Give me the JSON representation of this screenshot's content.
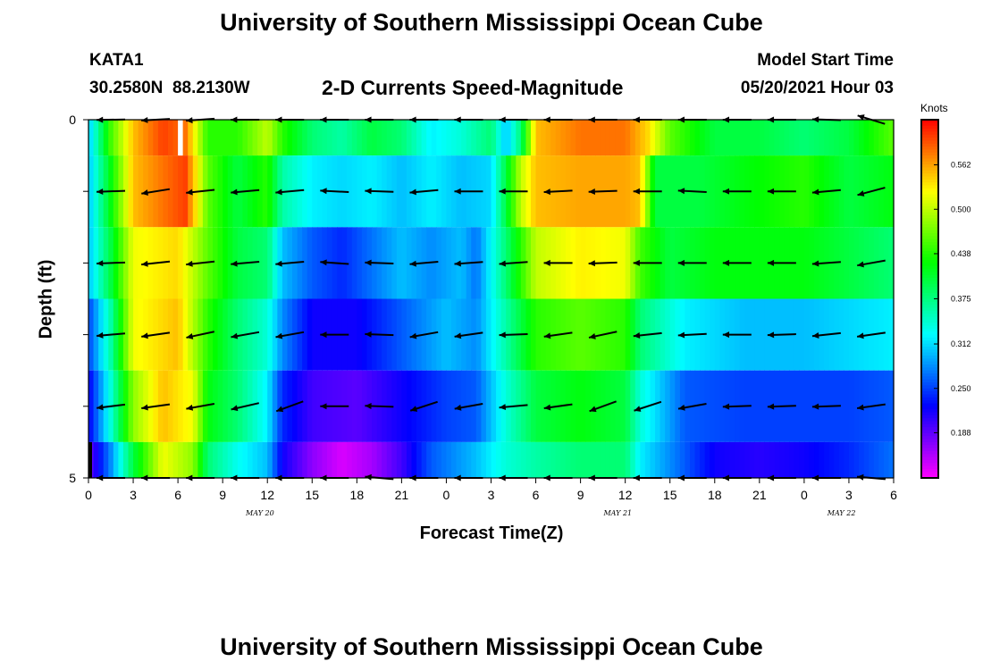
{
  "page": {
    "title_top": "University of Southern Mississippi Ocean Cube",
    "title_bottom": "University of Southern Mississippi Ocean Cube",
    "station_id": "KATA1",
    "station_coords": "30.2580N  88.2130W",
    "plot_title": "2-D Currents Speed-Magnitude",
    "model_label": "Model Start Time",
    "model_time": "05/20/2021 Hour 03"
  },
  "chart_data": {
    "type": "heatmap",
    "title": "2-D Currents Speed-Magnitude",
    "xlabel": "Forecast Time(Z)",
    "ylabel": "Depth (ft)",
    "xlim": [
      0,
      54
    ],
    "ylim": [
      5,
      0
    ],
    "x_tick_labels": [
      "0",
      "3",
      "6",
      "9",
      "12",
      "15",
      "18",
      "21",
      "0",
      "3",
      "6",
      "9",
      "12",
      "15",
      "18",
      "21",
      "0",
      "3",
      "6"
    ],
    "y_tick_labels": [
      "0",
      "5"
    ],
    "day_labels": [
      {
        "text": "MAY 20",
        "hour": 11.5
      },
      {
        "text": "MAY 21",
        "hour": 35.5
      },
      {
        "text": "MAY 22",
        "hour": 50.5
      }
    ],
    "colorbar": {
      "unit": "Knots",
      "range": [
        0.125,
        0.625
      ],
      "tick_values": [
        0.562,
        0.5,
        0.438,
        0.375,
        0.312,
        0.25,
        0.188
      ],
      "tick_labels": [
        "0.562",
        "0.500",
        "0.438",
        "0.375",
        "0.312",
        "0.250",
        "0.188"
      ]
    },
    "depth_bands": [
      {
        "top": 0,
        "bottom": 0.5,
        "arrow_depth": 0.0,
        "knots": [
          [
            0,
            0.3
          ],
          [
            1.5,
            0.45
          ],
          [
            3,
            0.55
          ],
          [
            5,
            0.6
          ],
          [
            6.5,
            0.58
          ],
          [
            8,
            0.44
          ],
          [
            10,
            0.44
          ],
          [
            12,
            0.5
          ],
          [
            13,
            0.44
          ],
          [
            15,
            0.38
          ],
          [
            17,
            0.36
          ],
          [
            19,
            0.4
          ],
          [
            21,
            0.38
          ],
          [
            23,
            0.32
          ],
          [
            25,
            0.34
          ],
          [
            27,
            0.38
          ],
          [
            28,
            0.3
          ],
          [
            29,
            0.38
          ],
          [
            30,
            0.55
          ],
          [
            33,
            0.58
          ],
          [
            36,
            0.58
          ],
          [
            37.5,
            0.54
          ],
          [
            39,
            0.46
          ],
          [
            42,
            0.4
          ],
          [
            45,
            0.4
          ],
          [
            48,
            0.38
          ],
          [
            51,
            0.4
          ],
          [
            54,
            0.46
          ]
        ]
      },
      {
        "top": 0.5,
        "bottom": 1.5,
        "arrow_depth": 1.0,
        "knots": [
          [
            0,
            0.3
          ],
          [
            1.5,
            0.42
          ],
          [
            3,
            0.55
          ],
          [
            5,
            0.58
          ],
          [
            6.5,
            0.6
          ],
          [
            8,
            0.46
          ],
          [
            10,
            0.4
          ],
          [
            12,
            0.44
          ],
          [
            13,
            0.36
          ],
          [
            15,
            0.32
          ],
          [
            17,
            0.31
          ],
          [
            19,
            0.32
          ],
          [
            21,
            0.3
          ],
          [
            23,
            0.32
          ],
          [
            25,
            0.3
          ],
          [
            27,
            0.31
          ],
          [
            28,
            0.4
          ],
          [
            29,
            0.5
          ],
          [
            30,
            0.55
          ],
          [
            33,
            0.56
          ],
          [
            36,
            0.56
          ],
          [
            37,
            0.55
          ],
          [
            38,
            0.4
          ],
          [
            41,
            0.4
          ],
          [
            44,
            0.42
          ],
          [
            48,
            0.44
          ],
          [
            51,
            0.4
          ],
          [
            54,
            0.42
          ]
        ]
      },
      {
        "top": 1.5,
        "bottom": 2.5,
        "arrow_depth": 2.0,
        "knots": [
          [
            0,
            0.3
          ],
          [
            1.5,
            0.4
          ],
          [
            3,
            0.52
          ],
          [
            6,
            0.54
          ],
          [
            8,
            0.46
          ],
          [
            10,
            0.4
          ],
          [
            12,
            0.38
          ],
          [
            13,
            0.3
          ],
          [
            15,
            0.26
          ],
          [
            17,
            0.24
          ],
          [
            19,
            0.27
          ],
          [
            21,
            0.3
          ],
          [
            23,
            0.28
          ],
          [
            25,
            0.3
          ],
          [
            26,
            0.27
          ],
          [
            28,
            0.38
          ],
          [
            29,
            0.44
          ],
          [
            30,
            0.5
          ],
          [
            33,
            0.53
          ],
          [
            36,
            0.52
          ],
          [
            37,
            0.45
          ],
          [
            39,
            0.4
          ],
          [
            42,
            0.42
          ],
          [
            45,
            0.42
          ],
          [
            48,
            0.42
          ],
          [
            51,
            0.4
          ],
          [
            54,
            0.38
          ]
        ]
      },
      {
        "top": 2.5,
        "bottom": 3.5,
        "arrow_depth": 3.0,
        "knots": [
          [
            0,
            0.25
          ],
          [
            1.5,
            0.36
          ],
          [
            3,
            0.52
          ],
          [
            6,
            0.55
          ],
          [
            8,
            0.44
          ],
          [
            10,
            0.38
          ],
          [
            12,
            0.34
          ],
          [
            13,
            0.28
          ],
          [
            15,
            0.22
          ],
          [
            18,
            0.22
          ],
          [
            21,
            0.26
          ],
          [
            24,
            0.3
          ],
          [
            26,
            0.28
          ],
          [
            28,
            0.36
          ],
          [
            30,
            0.44
          ],
          [
            33,
            0.46
          ],
          [
            36,
            0.44
          ],
          [
            37,
            0.38
          ],
          [
            40,
            0.32
          ],
          [
            44,
            0.3
          ],
          [
            48,
            0.3
          ],
          [
            51,
            0.31
          ],
          [
            54,
            0.32
          ]
        ]
      },
      {
        "top": 3.5,
        "bottom": 4.5,
        "arrow_depth": 4.0,
        "knots": [
          [
            0,
            0.22
          ],
          [
            1.5,
            0.34
          ],
          [
            3,
            0.48
          ],
          [
            5,
            0.55
          ],
          [
            7,
            0.52
          ],
          [
            8,
            0.42
          ],
          [
            10,
            0.38
          ],
          [
            12,
            0.32
          ],
          [
            13,
            0.24
          ],
          [
            15,
            0.2
          ],
          [
            18,
            0.19
          ],
          [
            21,
            0.22
          ],
          [
            24,
            0.25
          ],
          [
            26,
            0.26
          ],
          [
            28,
            0.34
          ],
          [
            30,
            0.4
          ],
          [
            33,
            0.42
          ],
          [
            36,
            0.4
          ],
          [
            37,
            0.34
          ],
          [
            40,
            0.26
          ],
          [
            44,
            0.25
          ],
          [
            48,
            0.25
          ],
          [
            51,
            0.25
          ],
          [
            54,
            0.26
          ]
        ]
      },
      {
        "top": 4.5,
        "bottom": 5,
        "arrow_depth": 5.0,
        "knots": [
          [
            0,
            0.18
          ],
          [
            1.5,
            0.28
          ],
          [
            3,
            0.4
          ],
          [
            5,
            0.52
          ],
          [
            7,
            0.48
          ],
          [
            8,
            0.38
          ],
          [
            10,
            0.33
          ],
          [
            12,
            0.3
          ],
          [
            13,
            0.22
          ],
          [
            15,
            0.17
          ],
          [
            17,
            0.14
          ],
          [
            19,
            0.16
          ],
          [
            21,
            0.2
          ],
          [
            23,
            0.26
          ],
          [
            26,
            0.3
          ],
          [
            28,
            0.34
          ],
          [
            30,
            0.36
          ],
          [
            33,
            0.38
          ],
          [
            36,
            0.38
          ],
          [
            37,
            0.32
          ],
          [
            39,
            0.28
          ],
          [
            42,
            0.22
          ],
          [
            45,
            0.21
          ],
          [
            48,
            0.22
          ],
          [
            51,
            0.24
          ],
          [
            54,
            0.27
          ]
        ]
      }
    ],
    "blank_cells": [
      {
        "x_start": 6,
        "x_end": 6.33,
        "depth_top": 0,
        "depth_bottom": 0.5
      }
    ],
    "vectors": {
      "x_hours": [
        1.5,
        4.5,
        7.5,
        10.5,
        13.5,
        16.5,
        19.5,
        22.5,
        25.5,
        28.5,
        31.5,
        34.5,
        37.5,
        40.5,
        43.5,
        46.5,
        49.5,
        52.5
      ],
      "rows": [
        {
          "depth": 0.0,
          "dir_deg": [
            181,
            183,
            184,
            180,
            180,
            180,
            180,
            180,
            180,
            180,
            180,
            180,
            180,
            180,
            180,
            180,
            178,
            163
          ]
        },
        {
          "depth": 1.0,
          "dir_deg": [
            182,
            189,
            186,
            185,
            185,
            177,
            178,
            185,
            180,
            180,
            183,
            182,
            180,
            177,
            180,
            180,
            185,
            195
          ]
        },
        {
          "depth": 2.0,
          "dir_deg": [
            182,
            186,
            186,
            185,
            185,
            176,
            178,
            185,
            184,
            184,
            180,
            182,
            180,
            180,
            180,
            180,
            184,
            190
          ]
        },
        {
          "depth": 3.0,
          "dir_deg": [
            185,
            188,
            192,
            190,
            190,
            180,
            178,
            190,
            188,
            182,
            188,
            192,
            186,
            183,
            180,
            182,
            186,
            188
          ]
        },
        {
          "depth": 4.0,
          "dir_deg": [
            187,
            188,
            190,
            193,
            200,
            180,
            178,
            198,
            190,
            185,
            188,
            200,
            198,
            190,
            182,
            182,
            182,
            188
          ]
        },
        {
          "depth": 5.0,
          "dir_deg": [
            180,
            180,
            180,
            180,
            180,
            180,
            175,
            180,
            180,
            180,
            180,
            180,
            180,
            180,
            180,
            180,
            180,
            175
          ]
        }
      ]
    }
  }
}
